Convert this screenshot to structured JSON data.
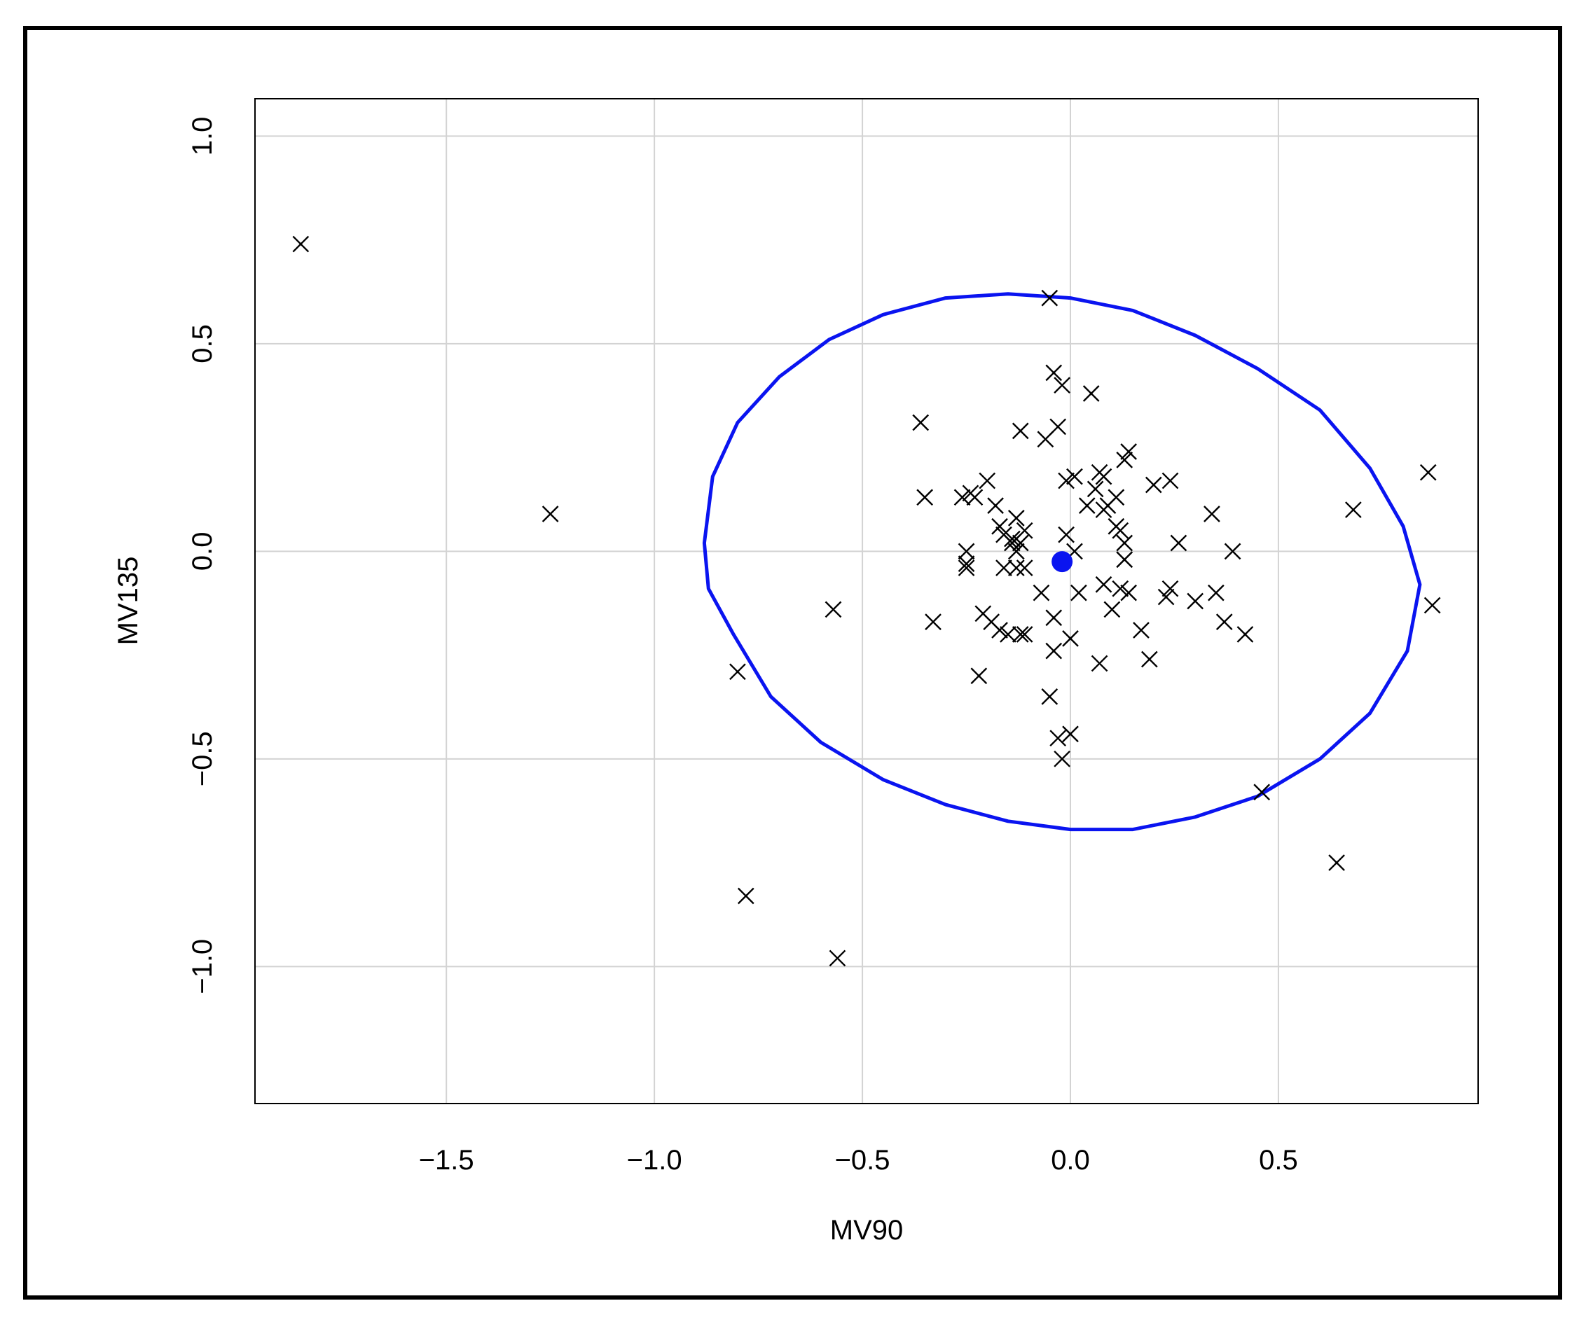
{
  "chart_data": {
    "type": "scatter",
    "xlabel": "MV90",
    "ylabel": "MV135",
    "xlim": [
      -1.96,
      0.98
    ],
    "ylim": [
      -1.33,
      1.09
    ],
    "x_ticks": [
      -1.5,
      -1.0,
      -0.5,
      0.0,
      0.5
    ],
    "x_tick_labels": [
      "−1.5",
      "−1.0",
      "−0.5",
      "0.0",
      "0.5"
    ],
    "y_ticks": [
      -1.0,
      -0.5,
      0.0,
      0.5,
      1.0
    ],
    "y_tick_labels": [
      "−1.0",
      "−0.5",
      "0.0",
      "0.5",
      "1.0"
    ],
    "grid": true,
    "colors": {
      "points": "#000000",
      "ellipse": "#0a14f0",
      "center": "#0a14f0",
      "grid": "#d3d3d3",
      "frame": "#000000"
    },
    "center": {
      "x": -0.02,
      "y": -0.025
    },
    "ellipse": {
      "points": [
        [
          -0.88,
          0.02
        ],
        [
          -0.86,
          0.18
        ],
        [
          -0.8,
          0.31
        ],
        [
          -0.7,
          0.42
        ],
        [
          -0.58,
          0.51
        ],
        [
          -0.45,
          0.57
        ],
        [
          -0.3,
          0.61
        ],
        [
          -0.15,
          0.62
        ],
        [
          0.0,
          0.61
        ],
        [
          0.15,
          0.58
        ],
        [
          0.3,
          0.52
        ],
        [
          0.45,
          0.44
        ],
        [
          0.6,
          0.34
        ],
        [
          0.72,
          0.2
        ],
        [
          0.8,
          0.06
        ],
        [
          0.84,
          -0.08
        ],
        [
          0.81,
          -0.24
        ],
        [
          0.72,
          -0.39
        ],
        [
          0.6,
          -0.5
        ],
        [
          0.45,
          -0.59
        ],
        [
          0.3,
          -0.64
        ],
        [
          0.15,
          -0.67
        ],
        [
          0.0,
          -0.67
        ],
        [
          -0.15,
          -0.65
        ],
        [
          -0.3,
          -0.61
        ],
        [
          -0.45,
          -0.55
        ],
        [
          -0.6,
          -0.46
        ],
        [
          -0.72,
          -0.35
        ],
        [
          -0.81,
          -0.2
        ],
        [
          -0.87,
          -0.09
        ]
      ]
    },
    "points": [
      [
        -1.85,
        0.74
      ],
      [
        -1.25,
        0.09
      ],
      [
        -0.8,
        -0.29
      ],
      [
        -0.78,
        -0.83
      ],
      [
        -0.57,
        -0.14
      ],
      [
        -0.56,
        -0.98
      ],
      [
        -0.36,
        0.31
      ],
      [
        -0.35,
        0.13
      ],
      [
        -0.33,
        -0.17
      ],
      [
        -0.26,
        0.13
      ],
      [
        -0.25,
        0.0
      ],
      [
        -0.25,
        -0.03
      ],
      [
        -0.25,
        -0.04
      ],
      [
        -0.24,
        0.14
      ],
      [
        -0.23,
        0.13
      ],
      [
        -0.22,
        -0.3
      ],
      [
        -0.21,
        -0.15
      ],
      [
        -0.2,
        0.17
      ],
      [
        -0.19,
        -0.17
      ],
      [
        -0.18,
        0.11
      ],
      [
        -0.17,
        -0.19
      ],
      [
        -0.17,
        0.06
      ],
      [
        -0.16,
        0.04
      ],
      [
        -0.16,
        -0.04
      ],
      [
        -0.15,
        -0.2
      ],
      [
        -0.14,
        0.03
      ],
      [
        -0.14,
        0.02
      ],
      [
        -0.13,
        0.08
      ],
      [
        -0.13,
        -0.04
      ],
      [
        -0.13,
        0.0
      ],
      [
        -0.12,
        0.29
      ],
      [
        -0.12,
        -0.2
      ],
      [
        -0.12,
        0.02
      ],
      [
        -0.11,
        0.05
      ],
      [
        -0.11,
        -0.2
      ],
      [
        -0.11,
        -0.04
      ],
      [
        -0.07,
        -0.1
      ],
      [
        -0.06,
        0.27
      ],
      [
        -0.05,
        0.61
      ],
      [
        -0.05,
        -0.35
      ],
      [
        -0.04,
        0.43
      ],
      [
        -0.04,
        -0.16
      ],
      [
        -0.04,
        -0.24
      ],
      [
        -0.03,
        -0.45
      ],
      [
        -0.03,
        0.3
      ],
      [
        -0.02,
        -0.5
      ],
      [
        -0.02,
        0.4
      ],
      [
        -0.01,
        0.17
      ],
      [
        -0.01,
        0.04
      ],
      [
        0.0,
        -0.21
      ],
      [
        0.0,
        -0.44
      ],
      [
        0.01,
        0.0
      ],
      [
        0.01,
        0.18
      ],
      [
        0.02,
        -0.1
      ],
      [
        0.04,
        0.11
      ],
      [
        0.05,
        0.38
      ],
      [
        0.06,
        0.15
      ],
      [
        0.07,
        -0.27
      ],
      [
        0.07,
        0.19
      ],
      [
        0.08,
        0.18
      ],
      [
        0.08,
        0.1
      ],
      [
        0.08,
        -0.08
      ],
      [
        0.09,
        0.11
      ],
      [
        0.1,
        -0.14
      ],
      [
        0.11,
        0.13
      ],
      [
        0.11,
        0.06
      ],
      [
        0.12,
        -0.09
      ],
      [
        0.12,
        0.05
      ],
      [
        0.13,
        0.22
      ],
      [
        0.13,
        0.02
      ],
      [
        0.13,
        -0.02
      ],
      [
        0.13,
        -0.02
      ],
      [
        0.14,
        0.24
      ],
      [
        0.14,
        -0.1
      ],
      [
        0.17,
        -0.19
      ],
      [
        0.19,
        -0.26
      ],
      [
        0.2,
        0.16
      ],
      [
        0.23,
        -0.11
      ],
      [
        0.24,
        0.17
      ],
      [
        0.24,
        -0.09
      ],
      [
        0.26,
        0.02
      ],
      [
        0.3,
        -0.12
      ],
      [
        0.34,
        0.09
      ],
      [
        0.35,
        -0.1
      ],
      [
        0.37,
        -0.17
      ],
      [
        0.39,
        0.0
      ],
      [
        0.42,
        -0.2
      ],
      [
        0.46,
        -0.58
      ],
      [
        0.64,
        -0.75
      ],
      [
        0.68,
        0.1
      ],
      [
        0.86,
        0.19
      ],
      [
        0.87,
        -0.13
      ]
    ]
  }
}
